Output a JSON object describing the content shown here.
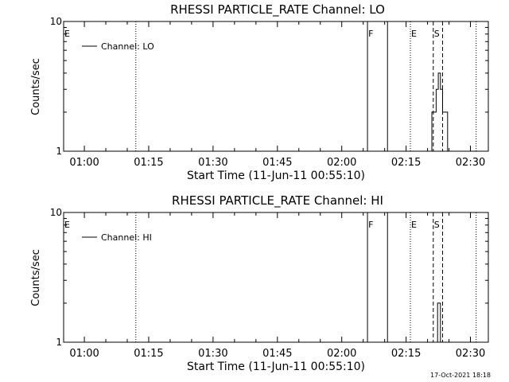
{
  "chart_data": [
    {
      "type": "line",
      "title": "RHESSI PARTICLE_RATE Channel: LO",
      "xlabel": "Start Time (11-Jun-11 00:55:10)",
      "ylabel": "Counts/sec",
      "y_scale": "log",
      "ylim": [
        1,
        10
      ],
      "y_ticks": [
        {
          "value": 1,
          "label": "1"
        },
        {
          "value": 10,
          "label": "10"
        }
      ],
      "xlim": [
        "00:55:10",
        "02:34:10"
      ],
      "x_ticks": [
        "01:00",
        "01:15",
        "01:30",
        "01:45",
        "02:00",
        "02:15",
        "02:30"
      ],
      "legend": {
        "placement": "top-left",
        "entries": [
          "Channel: LO"
        ]
      },
      "grid": false,
      "markers": [
        {
          "label": "E",
          "time": "00:55:10",
          "style": "dotted"
        },
        {
          "label": "",
          "time": "01:12:00",
          "style": "dotted"
        },
        {
          "label": "F",
          "time": "02:06:00",
          "style": "solid"
        },
        {
          "label": "",
          "time": "02:10:40",
          "style": "solid"
        },
        {
          "label": "E",
          "time": "02:16:00",
          "style": "dotted"
        },
        {
          "label": "S",
          "time": "02:21:20",
          "style": "dashed"
        },
        {
          "label": "",
          "time": "02:23:30",
          "style": "dashed"
        },
        {
          "label": "",
          "time": "02:31:20",
          "style": "dotted"
        }
      ],
      "series": [
        {
          "points": [
            {
              "t": "02:21:00",
              "v": 1
            },
            {
              "t": "02:21:00",
              "v": 2
            },
            {
              "t": "02:22:00",
              "v": 2
            },
            {
              "t": "02:22:00",
              "v": 3
            },
            {
              "t": "02:22:30",
              "v": 3
            },
            {
              "t": "02:22:30",
              "v": 4
            },
            {
              "t": "02:23:00",
              "v": 4
            },
            {
              "t": "02:23:00",
              "v": 3
            },
            {
              "t": "02:23:30",
              "v": 3
            },
            {
              "t": "02:23:30",
              "v": 2
            },
            {
              "t": "02:24:40",
              "v": 2
            },
            {
              "t": "02:24:40",
              "v": 1
            }
          ]
        }
      ]
    },
    {
      "type": "line",
      "title": "RHESSI PARTICLE_RATE Channel: HI",
      "xlabel": "Start Time (11-Jun-11 00:55:10)",
      "ylabel": "Counts/sec",
      "y_scale": "log",
      "ylim": [
        1,
        10
      ],
      "y_ticks": [
        {
          "value": 1,
          "label": "1"
        },
        {
          "value": 10,
          "label": "10"
        }
      ],
      "xlim": [
        "00:55:10",
        "02:34:10"
      ],
      "x_ticks": [
        "01:00",
        "01:15",
        "01:30",
        "01:45",
        "02:00",
        "02:15",
        "02:30"
      ],
      "legend": {
        "placement": "top-left",
        "entries": [
          "Channel: HI"
        ]
      },
      "grid": false,
      "markers": [
        {
          "label": "E",
          "time": "00:55:10",
          "style": "dotted"
        },
        {
          "label": "",
          "time": "01:12:00",
          "style": "dotted"
        },
        {
          "label": "F",
          "time": "02:06:00",
          "style": "solid"
        },
        {
          "label": "",
          "time": "02:10:40",
          "style": "solid"
        },
        {
          "label": "E",
          "time": "02:16:00",
          "style": "dotted"
        },
        {
          "label": "S",
          "time": "02:21:20",
          "style": "dashed"
        },
        {
          "label": "",
          "time": "02:23:30",
          "style": "dashed"
        },
        {
          "label": "",
          "time": "02:31:20",
          "style": "dotted"
        }
      ],
      "series": [
        {
          "points": [
            {
              "t": "02:22:20",
              "v": 1
            },
            {
              "t": "02:22:20",
              "v": 2
            },
            {
              "t": "02:23:00",
              "v": 2
            },
            {
              "t": "02:23:00",
              "v": 1
            }
          ]
        }
      ]
    }
  ],
  "footer": {
    "timestamp": "17-Oct-2021 18:18"
  }
}
